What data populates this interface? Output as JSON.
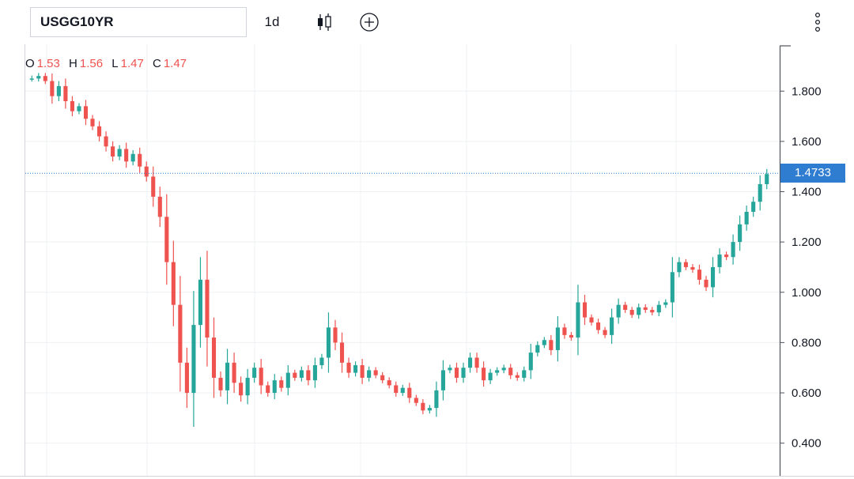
{
  "toolbar": {
    "symbol": "USGG10YR",
    "interval": "1d",
    "chart_type_icon": "candlestick-icon",
    "compare_icon": "add-circle-icon",
    "menu_icon": "more-vertical-icon"
  },
  "legend": {
    "o_label": "O",
    "o_value": "1.53",
    "h_label": "H",
    "h_value": "1.56",
    "l_label": "L",
    "l_value": "1.47",
    "c_label": "C",
    "c_value": "1.47"
  },
  "last_price": "1.4733",
  "colors": {
    "up": "#26a69a",
    "down": "#ef5350",
    "grid": "#eef0f3",
    "last_price_line": "#2f7dd1",
    "axis_text": "#131722"
  },
  "chart_data": {
    "type": "candlestick",
    "title": "",
    "xlabel": "",
    "ylabel": "",
    "ylim": [
      0.27,
      1.98
    ],
    "yticks": [
      "0.400",
      "0.600",
      "0.800",
      "1.000",
      "1.200",
      "1.400",
      "1.600",
      "1.800"
    ],
    "grid": true,
    "last_value": 1.4733,
    "series": [
      {
        "close": 1.85
      },
      {
        "close": 1.86
      },
      {
        "close": 1.84
      },
      {
        "close": 1.78
      },
      {
        "close": 1.82
      },
      {
        "close": 1.76
      },
      {
        "close": 1.72
      },
      {
        "close": 1.74
      },
      {
        "close": 1.69
      },
      {
        "close": 1.66
      },
      {
        "close": 1.62
      },
      {
        "close": 1.58
      },
      {
        "close": 1.54
      },
      {
        "close": 1.57
      },
      {
        "close": 1.52
      },
      {
        "close": 1.55
      },
      {
        "close": 1.5
      },
      {
        "close": 1.46
      },
      {
        "close": 1.38
      },
      {
        "close": 1.3
      },
      {
        "close": 1.12
      },
      {
        "close": 0.95
      },
      {
        "close": 0.72
      },
      {
        "close": 0.6
      },
      {
        "close": 0.87
      },
      {
        "close": 1.05
      },
      {
        "close": 0.82
      },
      {
        "close": 0.66
      },
      {
        "close": 0.61
      },
      {
        "close": 0.72
      },
      {
        "close": 0.64
      },
      {
        "close": 0.59
      },
      {
        "close": 0.66
      },
      {
        "close": 0.7
      },
      {
        "close": 0.63
      },
      {
        "close": 0.6
      },
      {
        "close": 0.65
      },
      {
        "close": 0.62
      },
      {
        "close": 0.68
      },
      {
        "close": 0.66
      },
      {
        "close": 0.69
      },
      {
        "close": 0.65
      },
      {
        "close": 0.71
      },
      {
        "close": 0.74
      },
      {
        "close": 0.86
      },
      {
        "close": 0.8
      },
      {
        "close": 0.72
      },
      {
        "close": 0.68
      },
      {
        "close": 0.71
      },
      {
        "close": 0.66
      },
      {
        "close": 0.69
      },
      {
        "close": 0.67
      },
      {
        "close": 0.65
      },
      {
        "close": 0.63
      },
      {
        "close": 0.6
      },
      {
        "close": 0.62
      },
      {
        "close": 0.58
      },
      {
        "close": 0.56
      },
      {
        "close": 0.53
      },
      {
        "close": 0.54
      },
      {
        "close": 0.61
      },
      {
        "close": 0.69
      },
      {
        "close": 0.7
      },
      {
        "close": 0.66
      },
      {
        "close": 0.7
      },
      {
        "close": 0.74
      },
      {
        "close": 0.7
      },
      {
        "close": 0.65
      },
      {
        "close": 0.68
      },
      {
        "close": 0.69
      },
      {
        "close": 0.7
      },
      {
        "close": 0.67
      },
      {
        "close": 0.66
      },
      {
        "close": 0.69
      },
      {
        "close": 0.76
      },
      {
        "close": 0.79
      },
      {
        "close": 0.81
      },
      {
        "close": 0.77
      },
      {
        "close": 0.86
      },
      {
        "close": 0.83
      },
      {
        "close": 0.82
      },
      {
        "close": 0.96
      },
      {
        "close": 0.9
      },
      {
        "close": 0.88
      },
      {
        "close": 0.85
      },
      {
        "close": 0.83
      },
      {
        "close": 0.9
      },
      {
        "close": 0.95
      },
      {
        "close": 0.93
      },
      {
        "close": 0.91
      },
      {
        "close": 0.94
      },
      {
        "close": 0.93
      },
      {
        "close": 0.92
      },
      {
        "close": 0.95
      },
      {
        "close": 0.96
      },
      {
        "close": 1.08
      },
      {
        "close": 1.12
      },
      {
        "close": 1.1
      },
      {
        "close": 1.09
      },
      {
        "close": 1.05
      },
      {
        "close": 1.02
      },
      {
        "close": 1.1
      },
      {
        "close": 1.15
      },
      {
        "close": 1.14
      },
      {
        "close": 1.2
      },
      {
        "close": 1.27
      },
      {
        "close": 1.32
      },
      {
        "close": 1.36
      },
      {
        "close": 1.43
      },
      {
        "close": 1.47
      }
    ]
  }
}
